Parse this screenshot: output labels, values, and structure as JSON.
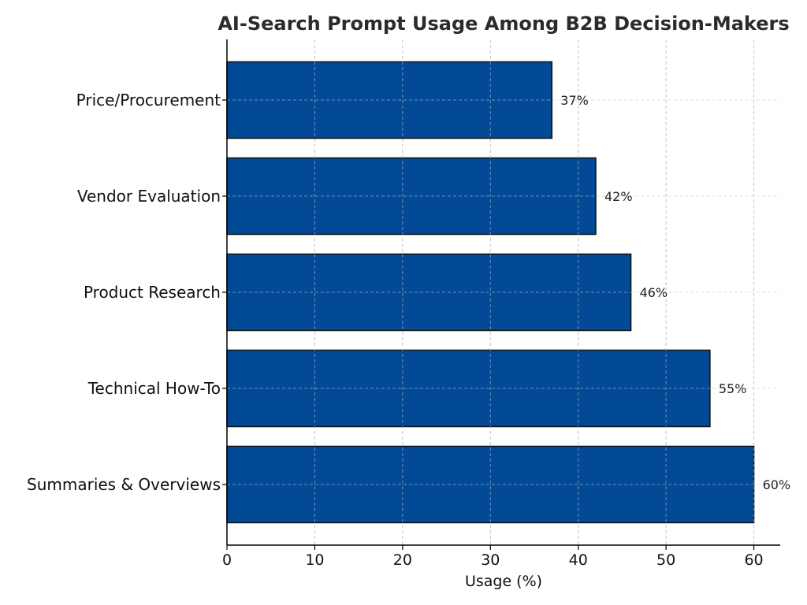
{
  "chart_data": {
    "type": "bar",
    "orientation": "horizontal",
    "title": "AI-Search Prompt Usage Among B2B Decision-Makers",
    "xlabel": "Usage (%)",
    "ylabel": "",
    "categories": [
      "Summaries & Overviews",
      "Technical How-To",
      "Product Research",
      "Vendor Evaluation",
      "Price/Procurement"
    ],
    "values": [
      60,
      55,
      46,
      42,
      37
    ],
    "data_labels": [
      "60%",
      "55%",
      "46%",
      "42%",
      "37%"
    ],
    "xlim": [
      0,
      63
    ],
    "xticks": [
      0,
      10,
      20,
      30,
      40,
      50,
      60
    ],
    "grid": true,
    "legend": "none",
    "bar_color": "#034a96",
    "bar_edge_color": "#111111"
  }
}
